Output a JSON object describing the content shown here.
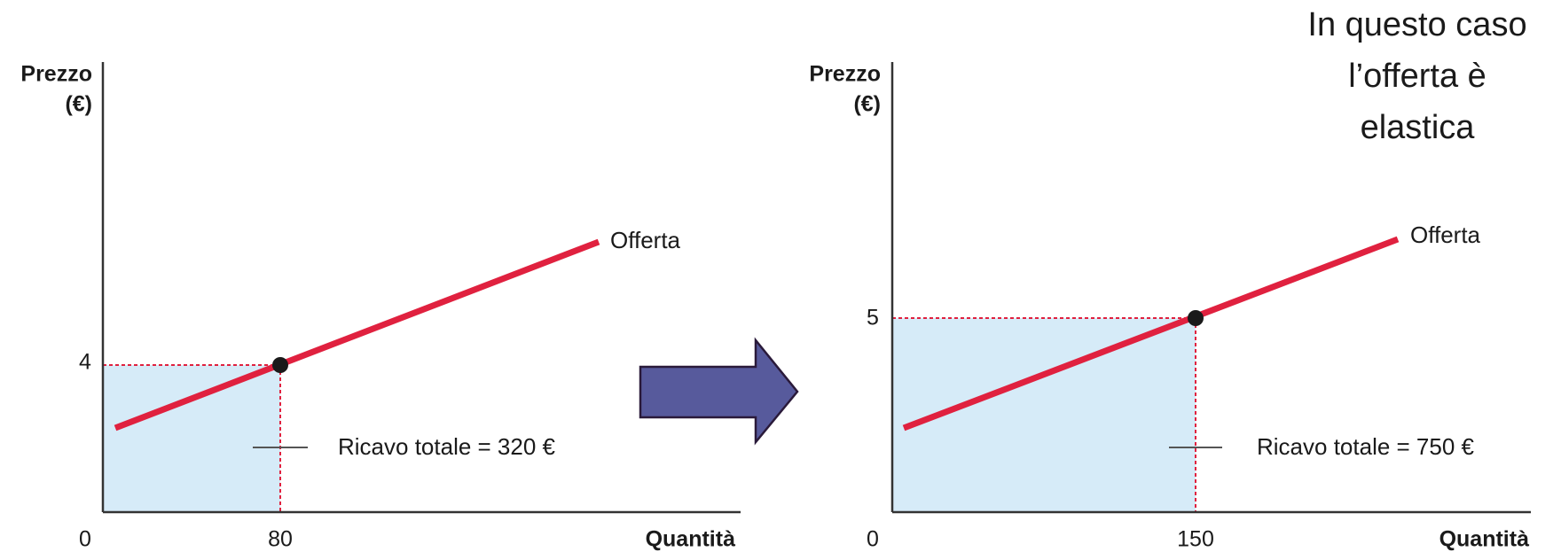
{
  "panels": [
    {
      "y_label": [
        "Prezzo",
        "(€)"
      ],
      "x_label": "Quantità",
      "origin": "0",
      "x_tick": "80",
      "y_tick": "4",
      "curve_label": "Offerta",
      "area_label": "Ricavo totale = 320 €"
    },
    {
      "y_label": [
        "Prezzo",
        "(€)"
      ],
      "x_label": "Quantità",
      "origin": "0",
      "x_tick": "150",
      "y_tick": "5",
      "curve_label": "Offerta",
      "area_label": "Ricavo totale = 750 €"
    }
  ],
  "note": [
    "In questo caso",
    "l’offerta è",
    "elastica"
  ]
}
